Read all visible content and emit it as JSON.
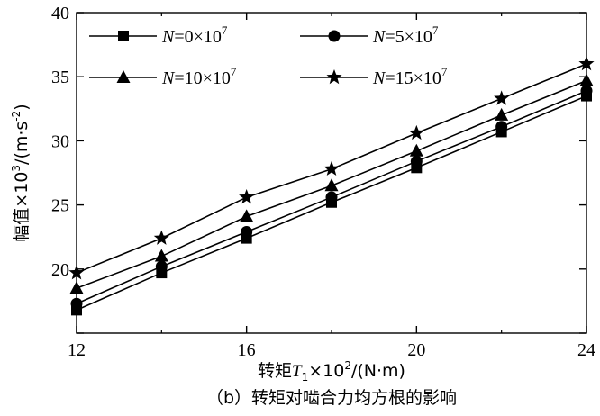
{
  "chart_data": {
    "type": "line",
    "x": [
      12,
      14,
      16,
      18,
      20,
      22,
      24
    ],
    "series": [
      {
        "name": "N=0×10⁷",
        "label_var": "N",
        "label_rest": "=0×10",
        "label_exp": "7",
        "marker": "square",
        "values": [
          16.8,
          19.7,
          22.4,
          25.2,
          27.9,
          30.7,
          33.5
        ]
      },
      {
        "name": "N=5×10⁷",
        "label_var": "N",
        "label_rest": "=5×10",
        "label_exp": "7",
        "marker": "circle",
        "values": [
          17.3,
          20.2,
          22.9,
          25.6,
          28.4,
          31.1,
          33.9
        ]
      },
      {
        "name": "N=10×10⁷",
        "label_var": "N",
        "label_rest": "=10×10",
        "label_exp": "7",
        "marker": "triangle",
        "values": [
          18.5,
          21.0,
          24.1,
          26.5,
          29.2,
          32.0,
          34.7
        ]
      },
      {
        "name": "N=15×10⁷",
        "label_var": "N",
        "label_rest": "=15×10",
        "label_exp": "7",
        "marker": "star",
        "values": [
          19.7,
          22.4,
          25.6,
          27.8,
          30.6,
          33.3,
          36.0
        ]
      }
    ],
    "xlim": [
      12,
      24
    ],
    "ylim": [
      15,
      40
    ],
    "xticks": [
      12,
      16,
      20,
      24
    ],
    "xticks_minor": [
      14,
      18,
      22
    ],
    "yticks": [
      15,
      20,
      25,
      30,
      35,
      40
    ],
    "yticks_labeled": [
      20,
      25,
      30,
      35,
      40
    ],
    "xlabel": {
      "prefix": "转矩",
      "var": "T",
      "sub": "1",
      "mid": "×10",
      "sup": "2",
      "suffix": "/(N·m)"
    },
    "ylabel": {
      "prefix": "幅值×10",
      "sup": "3",
      "mid": "/(m·s",
      "sup2": "-2",
      "suffix": ")"
    },
    "caption": "（b）转矩对啮合力均方根的影响",
    "grid": false,
    "legend_position": "top-inside",
    "color": "#000000"
  }
}
